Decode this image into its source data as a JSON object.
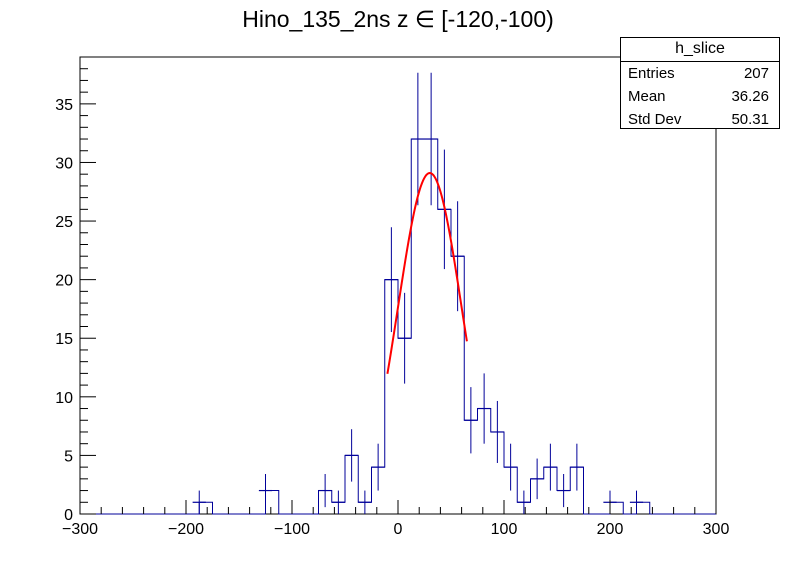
{
  "chart_data": {
    "type": "bar",
    "title": "Hino_135_2ns z  ∈ [-120,-100)",
    "xlabel": "",
    "ylabel": "",
    "xlim": [
      -300,
      300
    ],
    "ylim": [
      0,
      39
    ],
    "x_ticks": [
      -300,
      -200,
      -100,
      0,
      100,
      200,
      300
    ],
    "y_ticks": [
      0,
      5,
      10,
      15,
      20,
      25,
      30,
      35
    ],
    "grid": false,
    "bin_width": 12.5,
    "histogram": [
      {
        "x": -187.5,
        "y": 1
      },
      {
        "x": -125,
        "y": 2
      },
      {
        "x": -68.75,
        "y": 2
      },
      {
        "x": -56.25,
        "y": 1
      },
      {
        "x": -43.75,
        "y": 5
      },
      {
        "x": -31.25,
        "y": 1
      },
      {
        "x": -18.75,
        "y": 4
      },
      {
        "x": -6.25,
        "y": 20
      },
      {
        "x": 6.25,
        "y": 15
      },
      {
        "x": 18.75,
        "y": 32
      },
      {
        "x": 31.25,
        "y": 32
      },
      {
        "x": 43.75,
        "y": 26
      },
      {
        "x": 56.25,
        "y": 22
      },
      {
        "x": 68.75,
        "y": 8
      },
      {
        "x": 81.25,
        "y": 9
      },
      {
        "x": 93.75,
        "y": 7
      },
      {
        "x": 106.25,
        "y": 4
      },
      {
        "x": 118.75,
        "y": 1
      },
      {
        "x": 131.25,
        "y": 3
      },
      {
        "x": 143.75,
        "y": 4
      },
      {
        "x": 156.25,
        "y": 2
      },
      {
        "x": 168.75,
        "y": 4
      },
      {
        "x": 200,
        "y": 1
      },
      {
        "x": 225,
        "y": 1
      }
    ],
    "fit": {
      "type": "gaussian",
      "color": "#ff0000",
      "amplitude": 29.1,
      "mean": 30,
      "sigma": 30,
      "range": [
        -10,
        65
      ]
    },
    "line_color": "#000099"
  },
  "stats": {
    "name": "h_slice",
    "rows": [
      {
        "key": "Entries",
        "value": "207"
      },
      {
        "key": "Mean",
        "value": "36.26"
      },
      {
        "key": "Std Dev",
        "value": "50.31"
      }
    ]
  }
}
